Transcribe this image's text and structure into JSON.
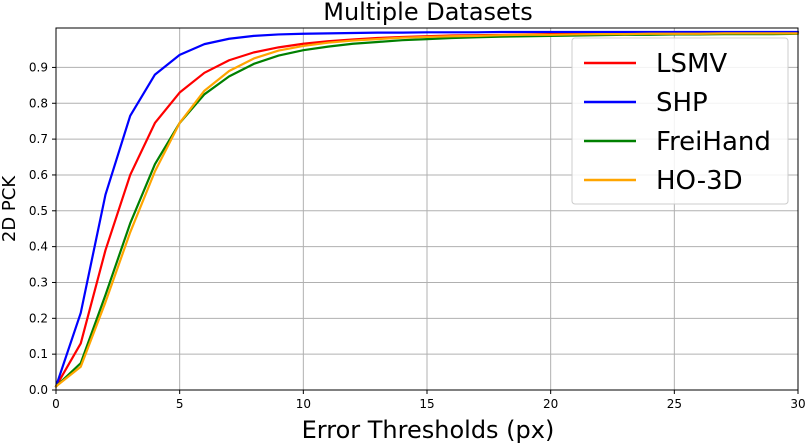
{
  "chart_data": {
    "type": "line",
    "title": "Multiple Datasets",
    "xlabel": "Error Thresholds (px)",
    "ylabel": "2D PCK",
    "xlim": [
      0,
      30
    ],
    "ylim": [
      0,
      1.01
    ],
    "xticks": [
      0,
      5,
      10,
      15,
      20,
      25,
      30
    ],
    "yticks": [
      0.0,
      0.1,
      0.2,
      0.3,
      0.4,
      0.5,
      0.6,
      0.7,
      0.8,
      0.9
    ],
    "grid": true,
    "legend_position": "top-right",
    "x": [
      0,
      1,
      2,
      3,
      4,
      5,
      6,
      7,
      8,
      9,
      10,
      11,
      12,
      13,
      14,
      15,
      16,
      17,
      18,
      19,
      20,
      21,
      22,
      23,
      24,
      25,
      26,
      27,
      28,
      29,
      30
    ],
    "series": [
      {
        "name": "LSMV",
        "color": "#ff0000",
        "values": [
          0.01,
          0.13,
          0.39,
          0.6,
          0.745,
          0.83,
          0.885,
          0.92,
          0.942,
          0.956,
          0.966,
          0.973,
          0.978,
          0.982,
          0.985,
          0.987,
          0.989,
          0.99,
          0.991,
          0.992,
          0.993,
          0.993,
          0.994,
          0.994,
          0.995,
          0.995,
          0.995,
          0.996,
          0.996,
          0.996,
          0.996
        ]
      },
      {
        "name": "SHP",
        "color": "#0000ff",
        "values": [
          0.01,
          0.215,
          0.545,
          0.765,
          0.88,
          0.935,
          0.965,
          0.98,
          0.988,
          0.992,
          0.994,
          0.995,
          0.996,
          0.997,
          0.997,
          0.998,
          0.998,
          0.998,
          0.999,
          0.999,
          0.999,
          0.999,
          0.999,
          0.999,
          0.999,
          0.999,
          0.999,
          0.999,
          0.999,
          0.999,
          0.999
        ]
      },
      {
        "name": "FreiHand",
        "color": "#008000",
        "values": [
          0.01,
          0.075,
          0.265,
          0.465,
          0.63,
          0.745,
          0.825,
          0.875,
          0.91,
          0.933,
          0.948,
          0.958,
          0.966,
          0.971,
          0.976,
          0.979,
          0.982,
          0.984,
          0.986,
          0.987,
          0.988,
          0.989,
          0.99,
          0.991,
          0.991,
          0.992,
          0.992,
          0.993,
          0.993,
          0.993,
          0.994
        ]
      },
      {
        "name": "HO-3D",
        "color": "#ffa500",
        "values": [
          0.01,
          0.065,
          0.245,
          0.44,
          0.61,
          0.745,
          0.835,
          0.89,
          0.925,
          0.947,
          0.96,
          0.969,
          0.975,
          0.979,
          0.983,
          0.985,
          0.987,
          0.988,
          0.99,
          0.991,
          0.991,
          0.992,
          0.993,
          0.993,
          0.994,
          0.994,
          0.994,
          0.995,
          0.995,
          0.995,
          0.995
        ]
      }
    ]
  }
}
